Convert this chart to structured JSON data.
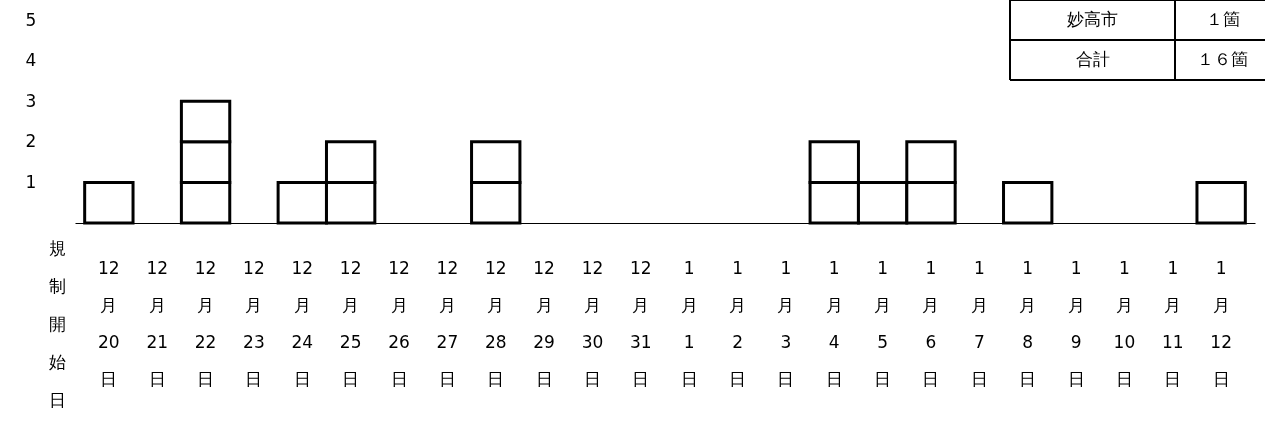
{
  "chart_data": {
    "type": "bar",
    "stacked": true,
    "xlabel": "規制開始日",
    "categories": [
      "12\n月\n20\n日",
      "12\n月\n21\n日",
      "12\n月\n22\n日",
      "12\n月\n23\n日",
      "12\n月\n24\n日",
      "12\n月\n25\n日",
      "12\n月\n26\n日",
      "12\n月\n27\n日",
      "12\n月\n28\n日",
      "12\n月\n29\n日",
      "12\n月\n30\n日",
      "12\n月\n31\n日",
      "1\n月\n1\n日",
      "1\n月\n2\n日",
      "1\n月\n3\n日",
      "1\n月\n4\n日",
      "1\n月\n5\n日",
      "1\n月\n6\n日",
      "1\n月\n7\n日",
      "1\n月\n8\n日",
      "1\n月\n9\n日",
      "1\n月\n10\n日",
      "1\n月\n11\n日",
      "1\n月\n12\n日"
    ],
    "series": [
      {
        "color": "#ffffff",
        "values": [
          1,
          null,
          1,
          null,
          1,
          1,
          null,
          null,
          1,
          null,
          null,
          null,
          null,
          null,
          null,
          1,
          1,
          1,
          null,
          1,
          null,
          null,
          null,
          1
        ]
      },
      {
        "color": "#ffffff",
        "values": [
          null,
          null,
          1,
          null,
          null,
          1,
          null,
          null,
          1,
          null,
          null,
          null,
          null,
          null,
          null,
          1,
          null,
          1,
          null,
          null,
          null,
          null,
          null,
          null
        ]
      },
      {
        "color": "#ffffff",
        "values": [
          null,
          null,
          1,
          null,
          null,
          null,
          null,
          null,
          null,
          null,
          null,
          null,
          null,
          null,
          null,
          null,
          null,
          null,
          null,
          null,
          null,
          null,
          null,
          null
        ]
      }
    ],
    "ylim": [
      0,
      5
    ],
    "yticks": [
      1,
      2,
      3,
      4,
      5
    ],
    "grid": false,
    "annotations": [
      "妙高市",
      "１箇",
      "合計",
      "１６箇"
    ]
  }
}
